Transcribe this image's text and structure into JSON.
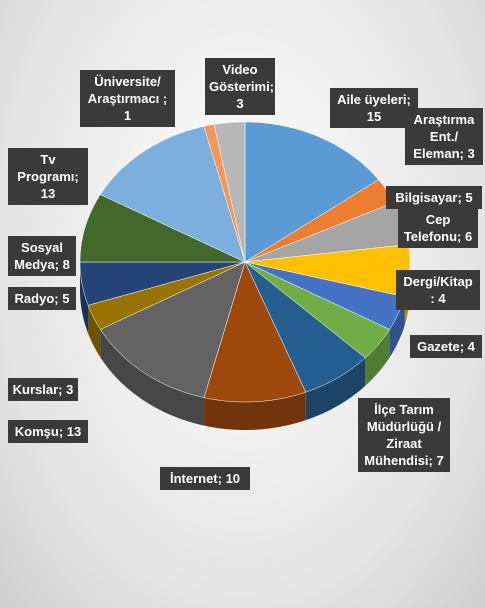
{
  "chart_data": {
    "type": "pie3d",
    "labels": [
      "Aile üyeleri; 15",
      "Araştırma Ent./ Eleman; 3",
      "Bilgisayar; 5",
      "Cep Telefonu; 6",
      "Dergi/Kitap : 4",
      "Gazete; 4",
      "İlçe Tarım Müdürlüğü / Ziraat Mühendisi; 7",
      "İnternet; 10",
      "Komşu; 13",
      "Kurslar; 3",
      "Radyo; 5",
      "Sosyal Medya; 8",
      "Tv Programı; 13",
      "Üniversite/ Araştırmacı ; 1",
      "Video Gösterimi; 3"
    ],
    "values": [
      15,
      3,
      5,
      6,
      4,
      4,
      7,
      10,
      13,
      3,
      5,
      8,
      13,
      1,
      3
    ],
    "colors": [
      "#5b9bd5",
      "#ed7d31",
      "#a5a5a5",
      "#ffc000",
      "#4472c4",
      "#70ad47",
      "#255e91",
      "#9e480e",
      "#636363",
      "#997300",
      "#264478",
      "#43682b",
      "#7cafdd",
      "#f1975a",
      "#b7b7b7"
    ]
  }
}
